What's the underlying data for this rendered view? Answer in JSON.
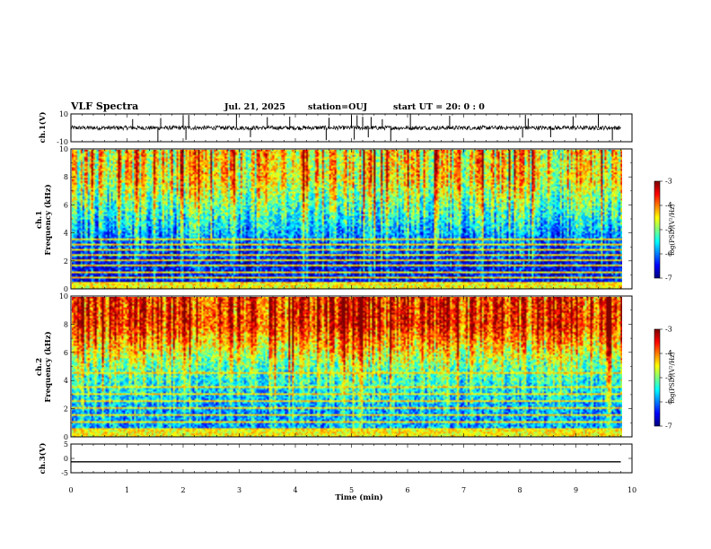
{
  "header": {
    "title": "VLF Spectra",
    "date": "Jul. 21, 2025",
    "station": "station=OUJ",
    "start": "start UT =  20: 0  : 0"
  },
  "chart_data": [
    {
      "type": "line",
      "panel": "ch1-waveform",
      "ylabel": "ch.1(V)",
      "ylim": [
        -10,
        10
      ],
      "yticks": [
        "10",
        "-10"
      ],
      "xlim": [
        0,
        10
      ],
      "baseline": 0,
      "noise_amplitude": 1.5,
      "data_end_min": 9.8,
      "spike_times_min": [
        1.1,
        1.55,
        1.6,
        2.0,
        2.05,
        2.1,
        2.95,
        3.2,
        3.5,
        3.9,
        4.55,
        4.6,
        5.0,
        5.05,
        5.1,
        5.2,
        5.3,
        5.35,
        5.55,
        5.7,
        6.05,
        6.75,
        8.05,
        8.1,
        8.15,
        8.55,
        8.95,
        9.4,
        9.65
      ]
    },
    {
      "type": "heatmap",
      "panel": "ch1-spectrogram",
      "ylabel": "ch.1 Frequency (kHz)",
      "xlim": [
        0,
        10
      ],
      "ylim": [
        0,
        10
      ],
      "yticks": [
        "0",
        "2",
        "4",
        "6",
        "8",
        "10"
      ],
      "data_end_min": 9.8,
      "colorbar": {
        "label": "log(PSD)(V²/Hz)",
        "range": [
          -7,
          -3
        ],
        "ticks": [
          "-3",
          "-4",
          "-5",
          "-6",
          "-7"
        ]
      },
      "description_levels": {
        "low_band_0_2kHz": -6.5,
        "mid_band_2_5kHz": -5.5,
        "high_band_5_10kHz": -4.5
      },
      "line_tones_kHz": [
        0.4,
        0.8,
        1.2,
        1.6,
        2.0,
        2.4,
        2.8,
        3.2,
        3.5
      ]
    },
    {
      "type": "heatmap",
      "panel": "ch2-spectrogram",
      "ylabel": "ch.2 Frequency (kHz)",
      "xlim": [
        0,
        10
      ],
      "ylim": [
        0,
        10
      ],
      "yticks": [
        "0",
        "2",
        "4",
        "6",
        "8",
        "10"
      ],
      "data_end_min": 9.8,
      "colorbar": {
        "label": "log(PSD)(V²/Hz)",
        "range": [
          -7,
          -3
        ],
        "ticks": [
          "-3",
          "-4",
          "-5",
          "-6",
          "-7"
        ]
      },
      "description_levels": {
        "low_band_0_2kHz": -5.8,
        "mid_band_2_5kHz": -5.0,
        "high_band_5_10kHz": -3.6
      },
      "line_tones_kHz": [
        0.5,
        1.0,
        1.5,
        2.0,
        2.5,
        3.0,
        3.5,
        4.5
      ]
    },
    {
      "type": "line",
      "panel": "ch3-waveform",
      "ylabel": "ch.3(V)",
      "ylim": [
        -5,
        5
      ],
      "yticks": [
        "5",
        "0",
        "-5"
      ],
      "xlim": [
        0,
        10
      ],
      "constant_value": -1.2
    }
  ],
  "xaxis": {
    "label": "Time (min)",
    "ticks": [
      "0",
      "1",
      "2",
      "3",
      "4",
      "5",
      "6",
      "7",
      "8",
      "9",
      "10"
    ]
  },
  "colors": {
    "colormap": [
      "#00007f",
      "#0000ff",
      "#007fff",
      "#00ffff",
      "#7fff7f",
      "#ffff00",
      "#ff7f00",
      "#ff0000",
      "#7f0000"
    ],
    "line": "#000000"
  }
}
